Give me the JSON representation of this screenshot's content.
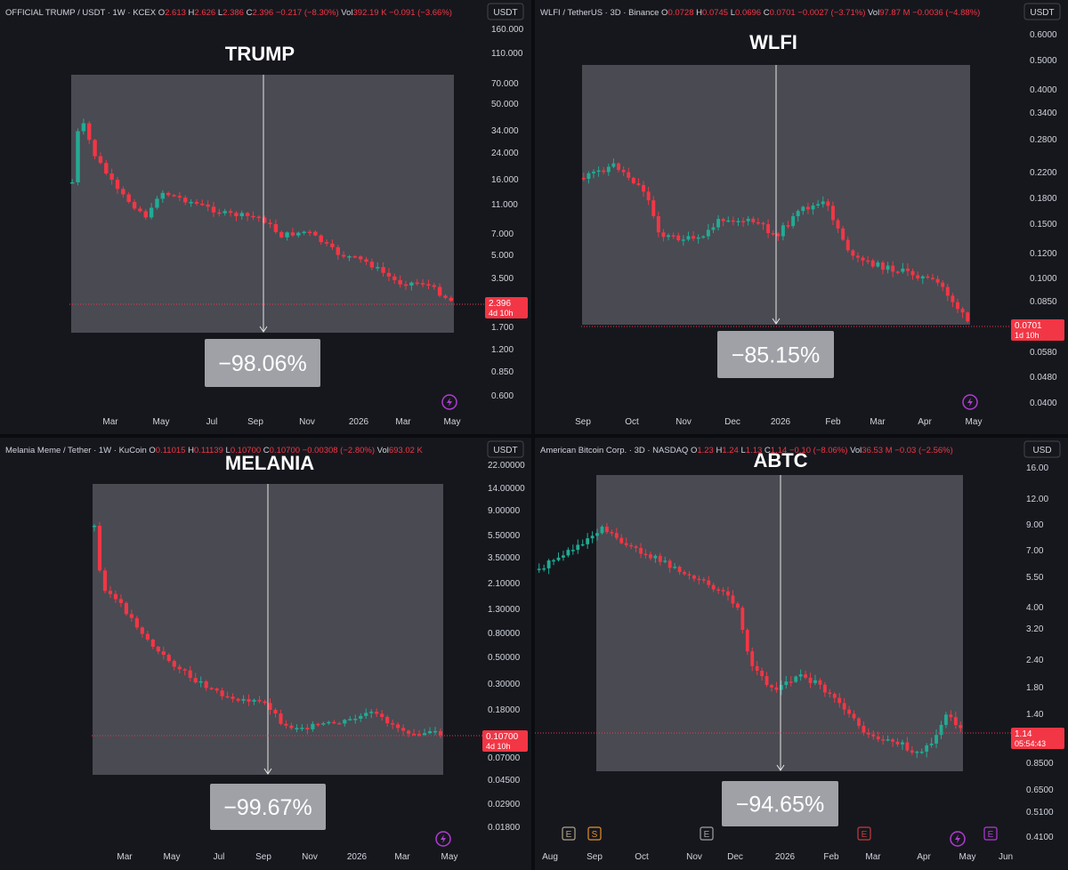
{
  "colors": {
    "background": "#16171d",
    "up": "#22ab94",
    "down": "#f23645",
    "axis_text": "#d1d4dc",
    "overlay": "#5d5e66",
    "label_box": "#a0a1a7"
  },
  "panels": [
    {
      "id": "trump",
      "header": {
        "symbol": "OFFICIAL TRUMP / USDT · 1W · KCEX",
        "o_label": "O",
        "o_val": "2.613",
        "h_label": "H",
        "h_val": "2.626",
        "l_label": "L",
        "l_val": "2.386",
        "c_label": "C",
        "c_val": "2.396",
        "change": "−0.217 (−8.30%)",
        "vol_label": "Vol",
        "vol_val": "392.19 K",
        "vol_change": "−0.091 (−3.66%)"
      },
      "currency": "USDT",
      "title": "TRUMP",
      "change_label": "−98.06%",
      "price_tag": "2.396",
      "countdown": "4d 10h",
      "icons": [
        "lightning-icon"
      ]
    },
    {
      "id": "wlfi",
      "header": {
        "symbol": "WLFI / TetherUS · 3D · Binance",
        "o_label": "O",
        "o_val": "0.0728",
        "h_label": "H",
        "h_val": "0.0745",
        "l_label": "L",
        "l_val": "0.0696",
        "c_label": "C",
        "c_val": "0.0701",
        "change": "−0.0027 (−3.71%)",
        "vol_label": "Vol",
        "vol_val": "97.87 M",
        "vol_change": "−0.0036 (−4.88%)"
      },
      "currency": "USDT",
      "title": "WLFI",
      "change_label": "−85.15%",
      "price_tag": "0.0701",
      "countdown": "1d 10h",
      "icons": [
        "lightning-icon"
      ]
    },
    {
      "id": "melania",
      "header": {
        "symbol": "Melania Meme / Tether · 1W · KuCoin",
        "o_label": "O",
        "o_val": "0.11015",
        "h_label": "H",
        "h_val": "0.11139",
        "l_label": "L",
        "l_val": "0.10700",
        "c_label": "C",
        "c_val": "0.10700",
        "change": "−0.00308 (−2.80%)",
        "vol_label": "Vol",
        "vol_val": "693.02 K",
        "vol_change": ""
      },
      "currency": "USDT",
      "title": "MELANIA",
      "change_label": "−99.67%",
      "price_tag": "0.10700",
      "countdown": "4d 10h",
      "icons": [
        "lightning-icon"
      ]
    },
    {
      "id": "abtc",
      "header": {
        "symbol": "American Bitcoin Corp. · 3D · NASDAQ",
        "o_label": "O",
        "o_val": "1.23",
        "h_label": "H",
        "h_val": "1.24",
        "l_label": "L",
        "l_val": "1.13",
        "c_label": "C",
        "c_val": "1.14",
        "change": "−0.10 (−8.06%)",
        "vol_label": "Vol",
        "vol_val": "36.53 M",
        "vol_change": "−0.03 (−2.56%)"
      },
      "currency": "USD",
      "title": "ABTC",
      "change_label": "−94.65%",
      "price_tag": "1.14",
      "countdown": "05:54:43",
      "events": [
        {
          "label": "E",
          "x_date": "Aug"
        },
        {
          "label": "S",
          "x_date": "Sep"
        },
        {
          "label": "E",
          "x_date": "Nov"
        },
        {
          "label": "E",
          "x_date": "Mar"
        },
        {
          "label": "E",
          "x_date": "May"
        }
      ],
      "icons": [
        "lightning-icon"
      ]
    }
  ],
  "chart_data": [
    {
      "type": "candlestick",
      "panel": "trump",
      "y_scale": "log",
      "yticks": [
        "160.000",
        "110.000",
        "70.000",
        "50.000",
        "34.000",
        "24.000",
        "16.000",
        "11.000",
        "7.000",
        "5.000",
        "3.500",
        "2.396",
        "1.700",
        "1.200",
        "0.850",
        "0.600"
      ],
      "xticks": [
        "Mar",
        "May",
        "Jul",
        "Sep",
        "Nov",
        "2026",
        "Mar",
        "May"
      ],
      "highlight": {
        "start": "Jan 2025",
        "end": "Apr 2026",
        "marker": "Sep",
        "change": "−98.06%"
      }
    },
    {
      "type": "candlestick",
      "panel": "wlfi",
      "y_scale": "log",
      "yticks": [
        "0.6000",
        "0.5000",
        "0.4000",
        "0.3400",
        "0.2800",
        "0.2200",
        "0.1800",
        "0.1500",
        "0.1200",
        "0.1000",
        "0.0850",
        "0.0701",
        "0.0580",
        "0.0480",
        "0.0400"
      ],
      "xticks": [
        "Sep",
        "Oct",
        "Nov",
        "Dec",
        "2026",
        "Feb",
        "Mar",
        "Apr",
        "May"
      ],
      "highlight": {
        "start": "Sep 2025",
        "end": "Apr 2026",
        "marker": "2026",
        "change": "−85.15%"
      }
    },
    {
      "type": "candlestick",
      "panel": "melania",
      "y_scale": "log",
      "yticks": [
        "22.00000",
        "14.00000",
        "9.00000",
        "5.50000",
        "3.50000",
        "2.10000",
        "1.30000",
        "0.80000",
        "0.50000",
        "0.30000",
        "0.18000",
        "0.10700",
        "0.07000",
        "0.04500",
        "0.02900",
        "0.01800"
      ],
      "xticks": [
        "Mar",
        "May",
        "Jul",
        "Sep",
        "Nov",
        "2026",
        "Mar",
        "May"
      ],
      "highlight": {
        "start": "Jan 2025",
        "end": "Apr 2026",
        "marker": "Sep",
        "change": "−99.67%"
      }
    },
    {
      "type": "candlestick",
      "panel": "abtc",
      "y_scale": "log",
      "yticks": [
        "16.00",
        "12.00",
        "9.00",
        "7.00",
        "5.50",
        "4.00",
        "3.20",
        "2.40",
        "1.80",
        "1.40",
        "1.14",
        "0.8500",
        "0.6500",
        "0.5100",
        "0.4100"
      ],
      "xticks": [
        "Aug",
        "Sep",
        "Oct",
        "Nov",
        "Dec",
        "2026",
        "Feb",
        "Mar",
        "Apr",
        "May",
        "Jun"
      ],
      "highlight": {
        "start": "Sep 2025",
        "end": "Apr 2026",
        "marker": "2026",
        "change": "−94.65%"
      }
    }
  ]
}
